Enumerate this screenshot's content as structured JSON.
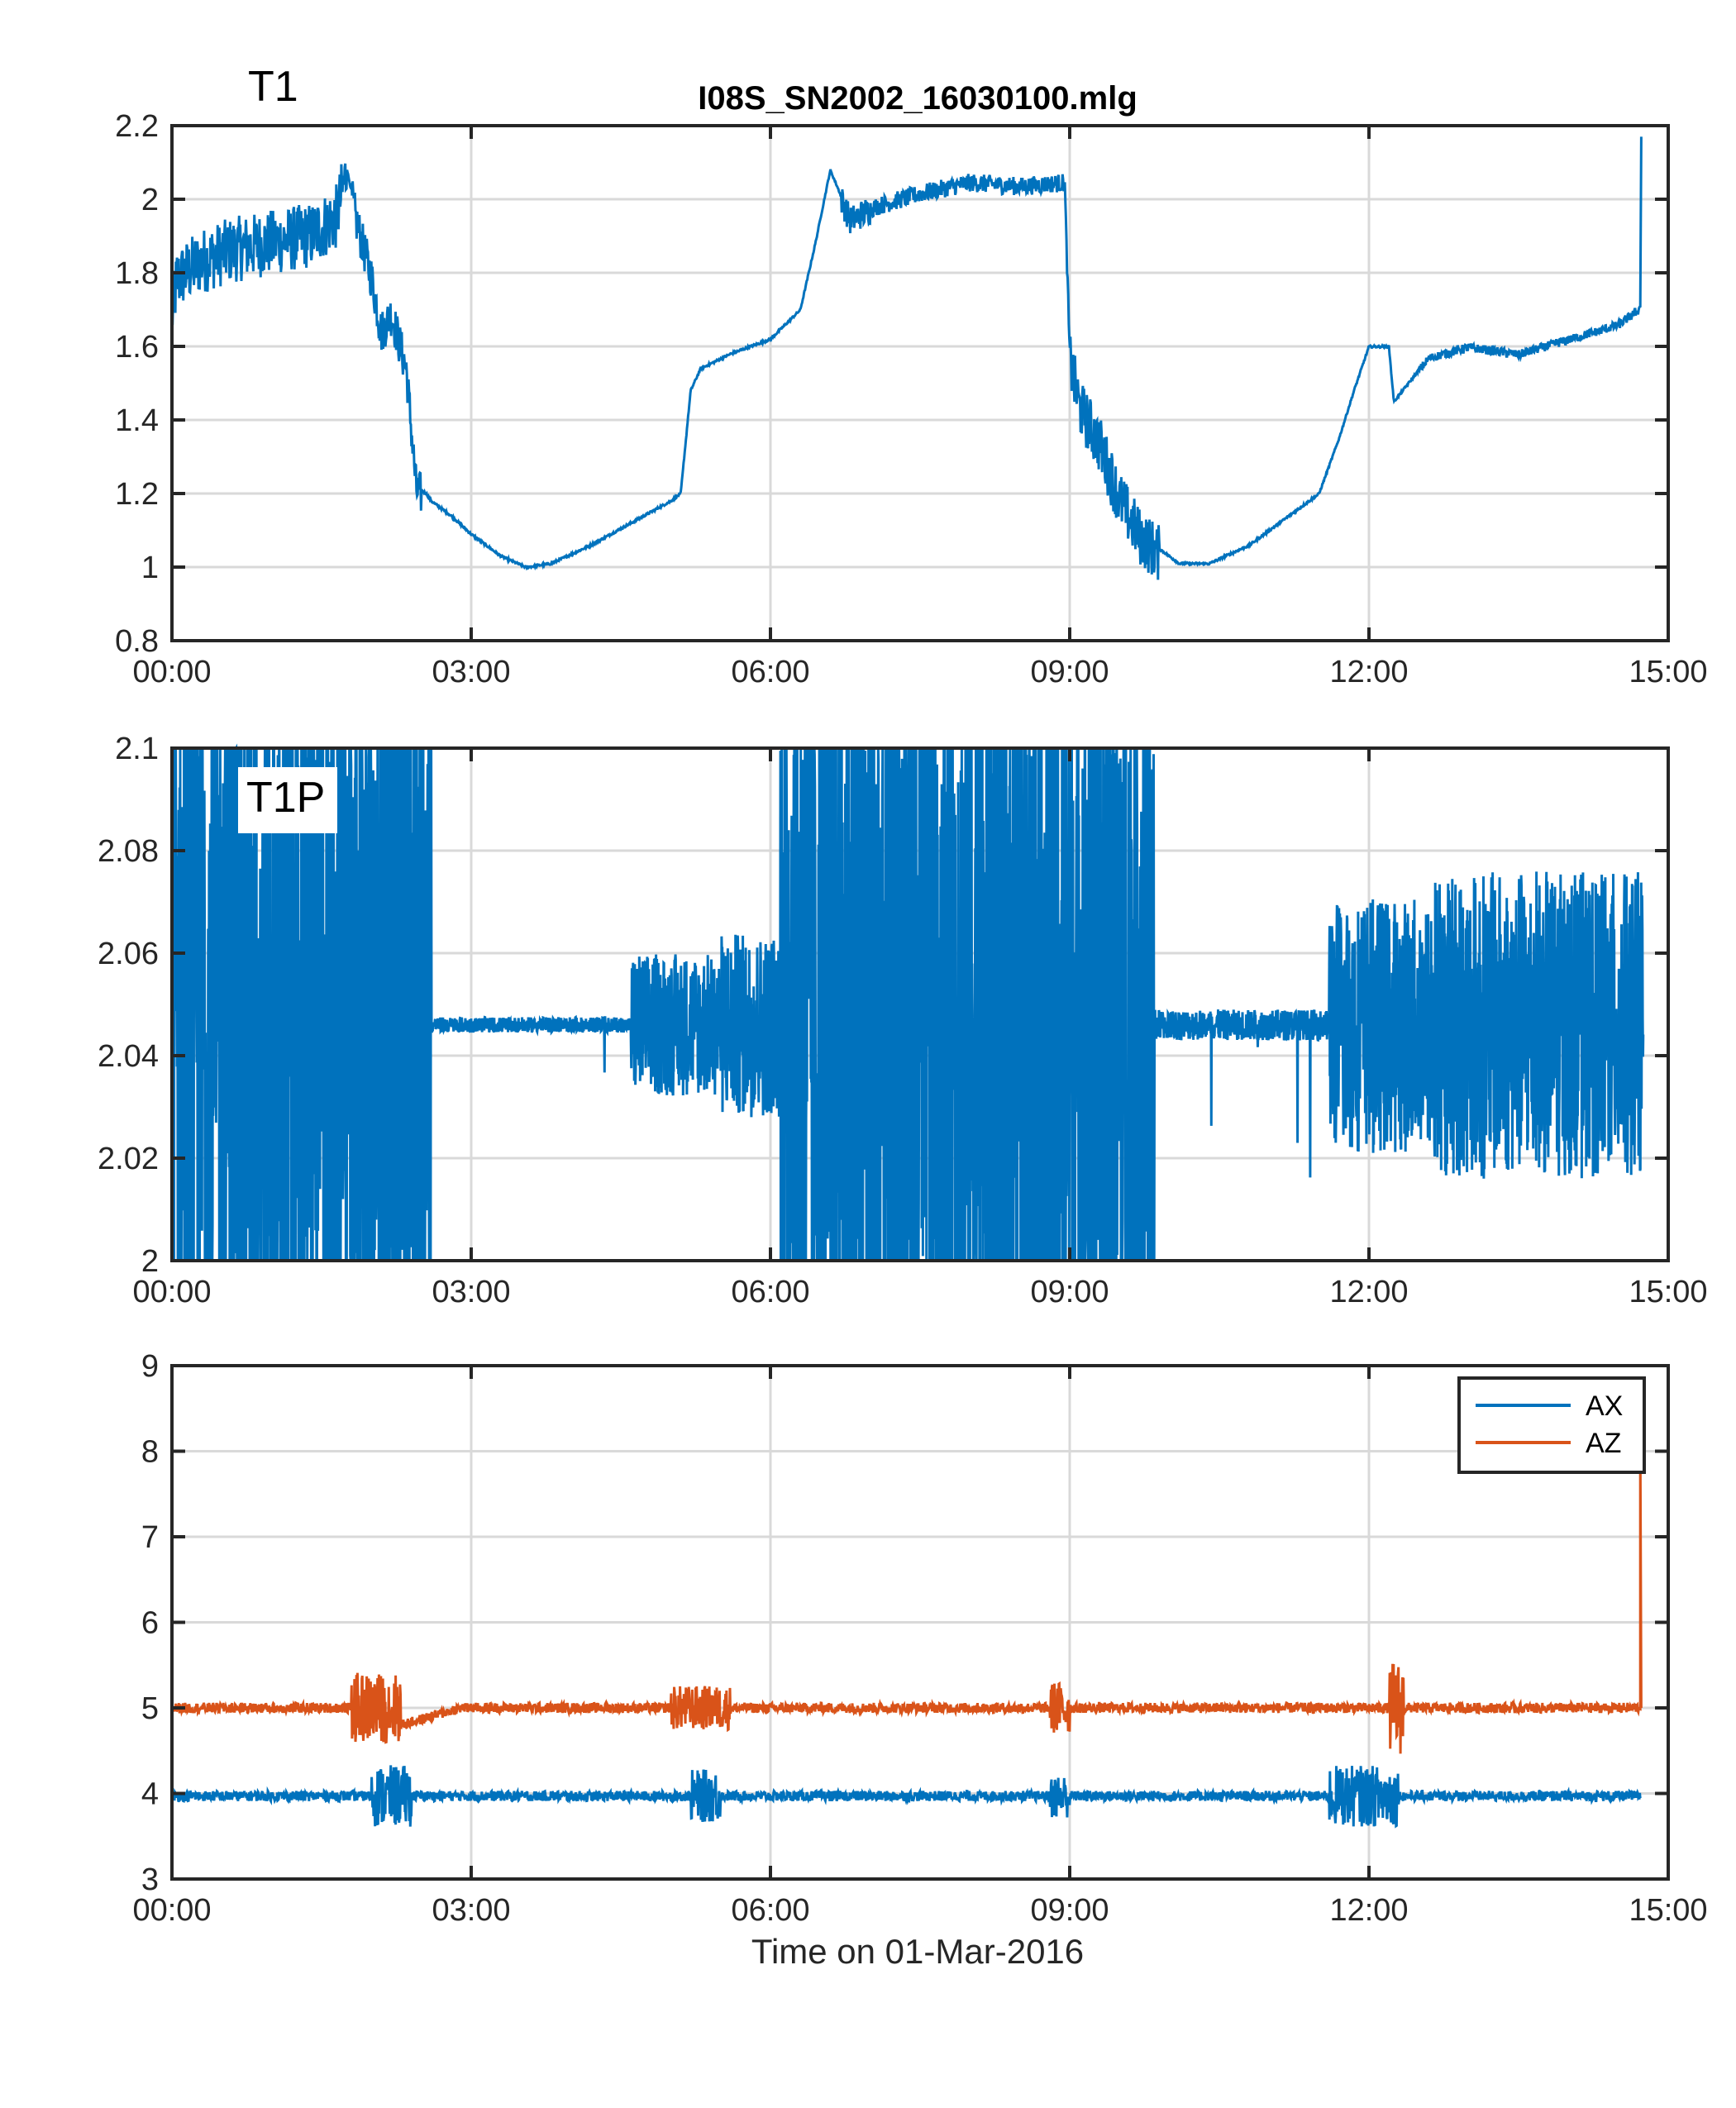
{
  "chart_data": [
    {
      "type": "line",
      "title": "I08S_SN2002_16030100.mlg",
      "panel_label": "T1",
      "xlabel": "",
      "ylabel": "",
      "x_ticks": [
        "00:00",
        "03:00",
        "06:00",
        "09:00",
        "12:00",
        "15:00"
      ],
      "xlim_hours": [
        0,
        15
      ],
      "ylim": [
        0.8,
        2.2
      ],
      "y_ticks": [
        "0.8",
        "1",
        "1.2",
        "1.4",
        "1.6",
        "1.8",
        "2",
        "2.2"
      ],
      "grid": true,
      "color": "#0072BD",
      "series": [
        {
          "x_hours": [
            0,
            0.05,
            0.3,
            0.6,
            1.0,
            1.4,
            1.65,
            1.75,
            1.85,
            2.0,
            2.1,
            2.2,
            2.35,
            2.45,
            2.55,
            2.6,
            2.8,
            3.0,
            3.3,
            3.55,
            3.8,
            4.2,
            4.6,
            5.0,
            5.1,
            5.2,
            5.3,
            5.6,
            6.0,
            6.3,
            6.45,
            6.6,
            6.8,
            7.0,
            7.5,
            8.0,
            8.5,
            8.95,
            9.0,
            9.1,
            9.3,
            9.5,
            9.7,
            9.9,
            10.1,
            10.4,
            10.8,
            11.2,
            11.5,
            11.7,
            11.85,
            12.0,
            12.2,
            12.25,
            12.6,
            13.0,
            13.5,
            14.0,
            14.5,
            14.7,
            14.72,
            14.73
          ],
          "values": [
            1.7,
            1.8,
            1.85,
            1.88,
            1.9,
            1.92,
            1.97,
            2.09,
            1.95,
            1.8,
            1.65,
            1.7,
            1.55,
            1.22,
            1.2,
            1.18,
            1.14,
            1.09,
            1.03,
            1.0,
            1.01,
            1.06,
            1.12,
            1.18,
            1.2,
            1.48,
            1.54,
            1.58,
            1.62,
            1.7,
            1.88,
            2.08,
            1.95,
            1.98,
            2.02,
            2.05,
            2.04,
            2.05,
            1.58,
            1.45,
            1.35,
            1.2,
            1.1,
            1.05,
            1.01,
            1.01,
            1.06,
            1.14,
            1.2,
            1.35,
            1.48,
            1.6,
            1.6,
            1.45,
            1.57,
            1.6,
            1.58,
            1.62,
            1.66,
            1.7,
            1.71,
            2.17
          ],
          "noise_segments": [
            [
              0.0,
              1.75,
              0.09
            ],
            [
              1.8,
              2.5,
              0.06
            ],
            [
              6.7,
              7.0,
              0.04
            ],
            [
              7.0,
              9.0,
              0.025
            ],
            [
              9.0,
              9.9,
              0.08
            ],
            [
              12.5,
              14.7,
              0.012
            ]
          ]
        }
      ]
    },
    {
      "type": "line",
      "panel_label": "T1P",
      "xlabel": "",
      "ylabel": "",
      "x_ticks": [
        "00:00",
        "03:00",
        "06:00",
        "09:00",
        "12:00",
        "15:00"
      ],
      "xlim_hours": [
        0,
        15
      ],
      "ylim": [
        2.0,
        2.1
      ],
      "y_ticks": [
        "2",
        "2.02",
        "2.04",
        "2.06",
        "2.08",
        "2.1"
      ],
      "grid": true,
      "color": "#0072BD",
      "series": [
        {
          "baseline": 2.046,
          "amplitude_segments": [
            [
              0.0,
              2.6,
              0.08
            ],
            [
              2.6,
              4.6,
              0.0015
            ],
            [
              4.6,
              5.5,
              0.014
            ],
            [
              5.5,
              6.1,
              0.018
            ],
            [
              6.1,
              9.85,
              0.09
            ],
            [
              9.85,
              11.6,
              0.003
            ],
            [
              11.6,
              12.6,
              0.025
            ],
            [
              12.6,
              14.75,
              0.03
            ]
          ],
          "x_end_hours": 14.75
        }
      ]
    },
    {
      "type": "line",
      "xlabel": "Time on 01-Mar-2016",
      "ylabel": "",
      "x_ticks": [
        "00:00",
        "03:00",
        "06:00",
        "09:00",
        "12:00",
        "15:00"
      ],
      "xlim_hours": [
        0,
        15
      ],
      "ylim": [
        3,
        9
      ],
      "y_ticks": [
        "3",
        "4",
        "5",
        "6",
        "7",
        "8",
        "9"
      ],
      "grid": true,
      "legend": "top-right",
      "series": [
        {
          "name": "AX",
          "color": "#0072BD",
          "baseline": 3.97,
          "noise": 0.06,
          "x_end_hours": 14.72,
          "bursts": [
            [
              2.0,
              2.4,
              0.3
            ],
            [
              5.2,
              5.5,
              0.25
            ],
            [
              8.8,
              9.0,
              0.2
            ],
            [
              11.6,
              12.3,
              0.3
            ]
          ]
        },
        {
          "name": "AZ",
          "color": "#D95319",
          "baseline": 5.0,
          "noise": 0.06,
          "x_end_hours": 14.72,
          "end_spike_value": 8.2,
          "bursts": [
            [
              1.8,
              2.3,
              0.35
            ],
            [
              2.3,
              2.9,
              0.0
            ],
            [
              5.0,
              5.6,
              0.2
            ],
            [
              8.8,
              9.0,
              0.25
            ],
            [
              12.2,
              12.35,
              0.5
            ]
          ]
        }
      ]
    }
  ]
}
